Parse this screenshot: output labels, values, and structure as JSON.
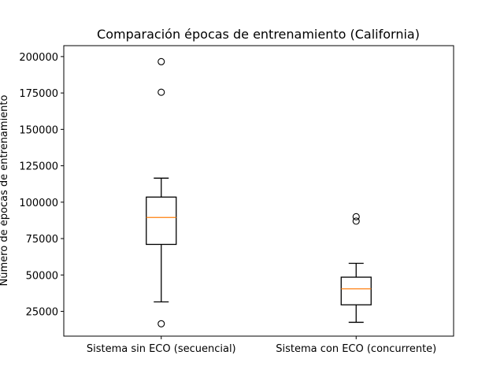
{
  "chart_data": {
    "type": "box",
    "title": "Comparación épocas de entrenamiento (California)",
    "xlabel": "",
    "ylabel": "Número de épocas de entrenamiento",
    "ylim": [
      8000,
      207500
    ],
    "yticks": [
      25000,
      50000,
      75000,
      100000,
      125000,
      150000,
      175000,
      200000
    ],
    "ytick_labels": [
      "25000",
      "50000",
      "75000",
      "100000",
      "125000",
      "150000",
      "175000",
      "200000"
    ],
    "categories": [
      "Sistema sin ECO (secuencial)",
      "Sistema con ECO (concurrente)"
    ],
    "boxes": [
      {
        "label": "Sistema sin ECO (secuencial)",
        "whisker_low": 31500,
        "q1": 71000,
        "median": 89500,
        "q3": 103500,
        "whisker_high": 116500,
        "outliers": [
          16500,
          175500,
          196500
        ]
      },
      {
        "label": "Sistema con ECO (concurrente)",
        "whisker_low": 17500,
        "q1": 29500,
        "median": 40500,
        "q3": 48500,
        "whisker_high": 58000,
        "outliers": [
          87000,
          90000
        ]
      }
    ],
    "grid": false,
    "colors": {
      "box": "#000000",
      "median": "#ff7f0e",
      "background": "#ffffff"
    }
  }
}
